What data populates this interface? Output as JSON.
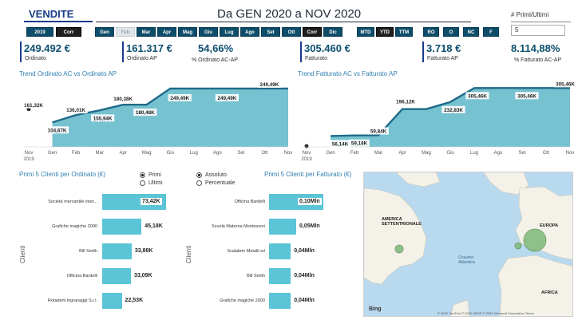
{
  "header": {
    "title": "VENDITE",
    "date_range": "Da GEN 2020 a NOV 2020",
    "slicer_label": "# Primi/Ultimi",
    "slicer_value": "5"
  },
  "buttons": {
    "year": [
      "2019",
      "Corr"
    ],
    "months": [
      "Gen",
      "Feb",
      "Mar",
      "Apr",
      "Mag",
      "Giu",
      "Lug",
      "Ago",
      "Set",
      "Ott",
      "Corr",
      "Dic"
    ],
    "periods": [
      "MTD",
      "YTD",
      "TTM"
    ],
    "filters": [
      "RO",
      "O",
      "NC",
      "F"
    ]
  },
  "kpis": [
    {
      "value": "249.492 €",
      "label": "Ordinato"
    },
    {
      "value": "161.317 €",
      "label": "Ordinato AP"
    },
    {
      "value": "54,66%",
      "label": "% Ordinato AC-AP"
    },
    {
      "value": "305.460 €",
      "label": "Fatturato"
    },
    {
      "value": "3.718 €",
      "label": "Fatturato AP"
    },
    {
      "value": "8.114,88%",
      "label": "% Fatturato AC-AP"
    }
  ],
  "colors": {
    "accent": "#0d4e6e",
    "area": "#5fb7c8",
    "bar": "#5bc4d6",
    "title": "#2f7fb0"
  },
  "chart_data": [
    {
      "type": "area",
      "title": "Trend Ordinato AC vs Ordinato AP",
      "categories": [
        "Nov 2019",
        "Gen",
        "Feb",
        "Mar",
        "Apr",
        "Mag",
        "Giu",
        "Lug",
        "Ago",
        "Set",
        "Ott",
        "Nov"
      ],
      "series": [
        {
          "values": [
            null,
            104.67,
            136.01,
            155.94,
            180.38,
            180.48,
            249.49,
            249.49,
            249.49,
            249.49,
            249.49,
            249.49
          ]
        },
        {
          "values": [
            161.32,
            null,
            null,
            null,
            null,
            null,
            null,
            null,
            null,
            null,
            null,
            null
          ]
        }
      ],
      "labels": [
        "161,32K",
        "104,67K",
        "136,01K",
        "155,94K",
        "180,38K",
        "180,48K",
        "249,49K",
        "249,49K",
        "249,49K"
      ],
      "ylim": [
        0,
        280
      ]
    },
    {
      "type": "area",
      "title": "Trend Fatturato AC vs Fatturato AP",
      "categories": [
        "Nov 2019",
        "Gen",
        "Feb",
        "Mar",
        "Apr",
        "Mag",
        "Giu",
        "Lug",
        "Ago",
        "Set",
        "Ott",
        "Nov"
      ],
      "series": [
        {
          "values": [
            null,
            56.14,
            59.18,
            59.84,
            196.12,
            196.12,
            232.83,
            305.46,
            305.46,
            305.46,
            305.46,
            305.46
          ]
        },
        {
          "values": [
            3.72,
            null,
            null,
            null,
            null,
            null,
            null,
            null,
            null,
            null,
            null,
            null
          ]
        }
      ],
      "labels": [
        "56,14K",
        "59,18K",
        "59,84K",
        "196,12K",
        "232,83K",
        "305,46K",
        "305,46K",
        "305,46K"
      ],
      "ylim": [
        0,
        340
      ]
    },
    {
      "type": "bar",
      "title": "Primi 5 Clienti per Ordinato (€)",
      "ylabel": "Clienti",
      "categories": [
        "Società mercantile inter...",
        "Grafiche magiche 2000",
        "Bill Smith",
        "Officina Bardelli",
        "Rotadent ingranaggi S.r.l."
      ],
      "values": [
        73.42,
        45.18,
        33.88,
        33.09,
        22.53
      ],
      "value_labels": [
        "73,42K",
        "45,18K",
        "33,88K",
        "33,09K",
        "22,53K"
      ]
    },
    {
      "type": "bar",
      "title": "Primi 5 Clienti per Fatturato (€)",
      "ylabel": "Clienti",
      "categories": [
        "Officina Bardelli",
        "Scuola Materna Montessori",
        "Scalabrin Metalli srl",
        "Bill Smith",
        "Grafiche magiche 2000"
      ],
      "values": [
        0.1,
        0.05,
        0.04,
        0.04,
        0.04
      ],
      "value_labels": [
        "0,10Mln",
        "0,05Mln",
        "0,04Mln",
        "0,04Mln",
        "0,04Mln"
      ]
    }
  ],
  "radios": {
    "order": [
      {
        "label": "Primi",
        "on": true
      },
      {
        "label": "Ultimi",
        "on": false
      }
    ],
    "mode": [
      {
        "label": "Assoluto",
        "on": true
      },
      {
        "label": "Percentuale",
        "on": false
      }
    ]
  },
  "map": {
    "labels": [
      "AMERICA SETTENTRIONALE",
      "EUROPA",
      "Oceano Atlantico",
      "AFRICA"
    ],
    "bing": "Bing",
    "copyright": "© 2020 TomTom © 2020 HERE © 2022 Microsoft Corporation Terms"
  }
}
